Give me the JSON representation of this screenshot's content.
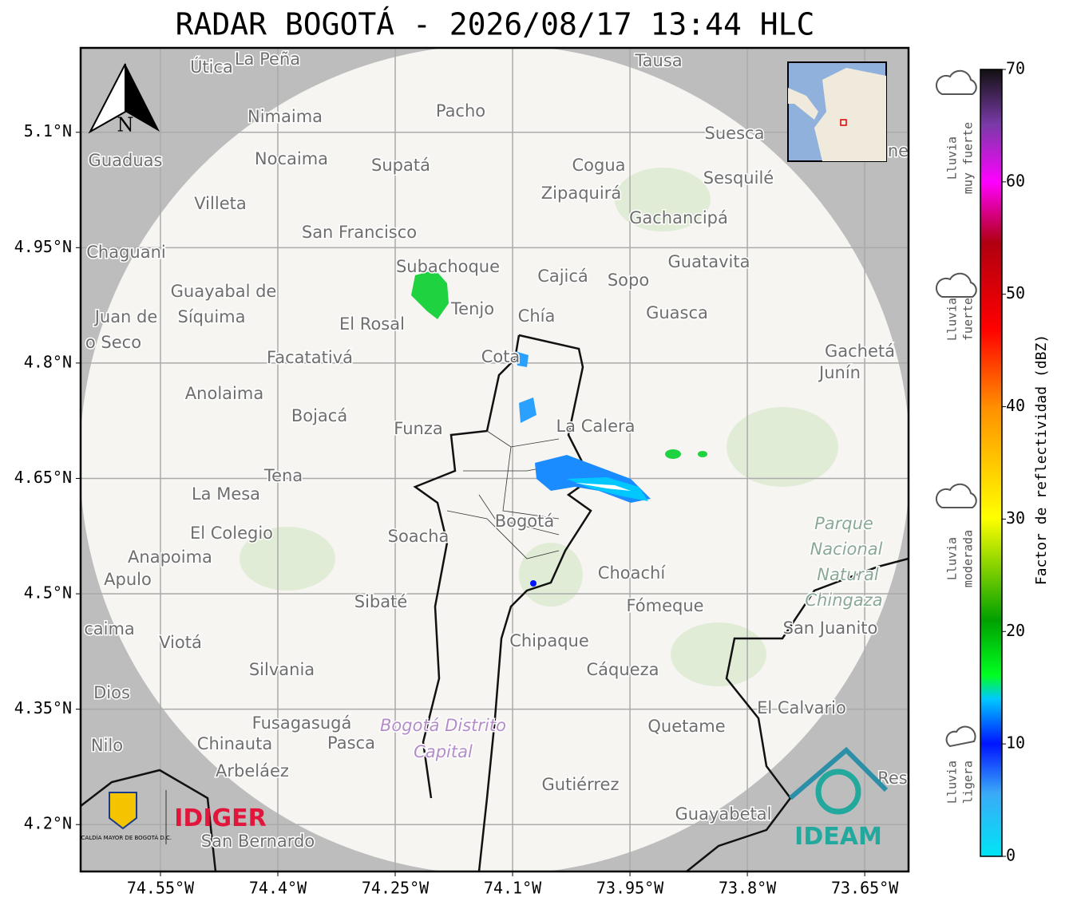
{
  "title": "RADAR BOGOTÁ - 2026/08/17 13:44 HLC",
  "map": {
    "xlim": [
      -74.652,
      -73.594
    ],
    "ylim": [
      4.139,
      5.2097
    ],
    "xticks": [
      {
        "value": -74.55,
        "label": "74.55°W"
      },
      {
        "value": -74.4,
        "label": "74.4°W"
      },
      {
        "value": -74.25,
        "label": "74.25°W"
      },
      {
        "value": -74.1,
        "label": "74.1°W"
      },
      {
        "value": -73.95,
        "label": "73.95°W"
      },
      {
        "value": -73.8,
        "label": "73.8°W"
      },
      {
        "value": -73.65,
        "label": "73.65°W"
      }
    ],
    "yticks": [
      {
        "value": 5.1,
        "label": "5.1°N"
      },
      {
        "value": 4.95,
        "label": "4.95°N"
      },
      {
        "value": 4.8,
        "label": "4.8°N"
      },
      {
        "value": 4.65,
        "label": "4.65°N"
      },
      {
        "value": 4.5,
        "label": "4.5°N"
      },
      {
        "value": 4.35,
        "label": "4.35°N"
      },
      {
        "value": 4.2,
        "label": "4.2°N"
      }
    ],
    "places": [
      "Útica",
      "La Peña",
      "Tausa",
      "Pacho",
      "Nimaima",
      "Suesca",
      "Guaduas",
      "Nocaima",
      "Supatá",
      "Cogua",
      "Sesquilé",
      "Zipaquirá",
      "Villeta",
      "Gachancipá",
      "San Francisco",
      "Chaguani",
      "Guatavita",
      "Subachoque",
      "Cajicá",
      "Sopo",
      "Guayabal de",
      "Síquima",
      "Juan de",
      "Tenjo",
      "Chía",
      "Guasca",
      "El Rosal",
      "o Seco",
      "Facatativá",
      "Cota",
      "Gachetá",
      "Junín",
      "Anolaima",
      "Bojacá",
      "Funza",
      "La Calera",
      "Tena",
      "La Mesa",
      "El Colegio",
      "Soacha",
      "Bogotá",
      "Parque",
      "Nacional",
      "Natural",
      "Chingaza",
      "Anapoima",
      "Apulo",
      "Choachí",
      "Sibaté",
      "Fómeque",
      "San Juanito",
      "caima",
      "Viotá",
      "Chipaque",
      "Silvania",
      "Cáqueza",
      "Dios",
      "El Calvario",
      "Fusagasugá",
      "Bogotá Distrito",
      "Capital",
      "Quetame",
      "Nilo",
      "Chinauta",
      "Pasca",
      "Arbeláez",
      "Gutiérrez",
      "Guayabetal",
      "San Bernardo",
      "Res",
      "ne"
    ],
    "north": "N",
    "logo_left": "ALCALDÍA MAYOR DE BOGOTÁ D.C.",
    "logo_idiger": "IDIGER",
    "logo_ideam": "IDEAM"
  },
  "colorbar": {
    "lim": [
      0,
      70
    ],
    "ticks": [
      0,
      10,
      20,
      30,
      40,
      50,
      60,
      70
    ],
    "label": "Factor de reflectividad (dBZ)",
    "categories": [
      [
        "Lluvia",
        "muy fuerte"
      ],
      [
        "Lluvia",
        "fuerte"
      ],
      [
        "Lluvia",
        "moderada"
      ],
      [
        "Lluvia",
        "ligera"
      ]
    ]
  }
}
